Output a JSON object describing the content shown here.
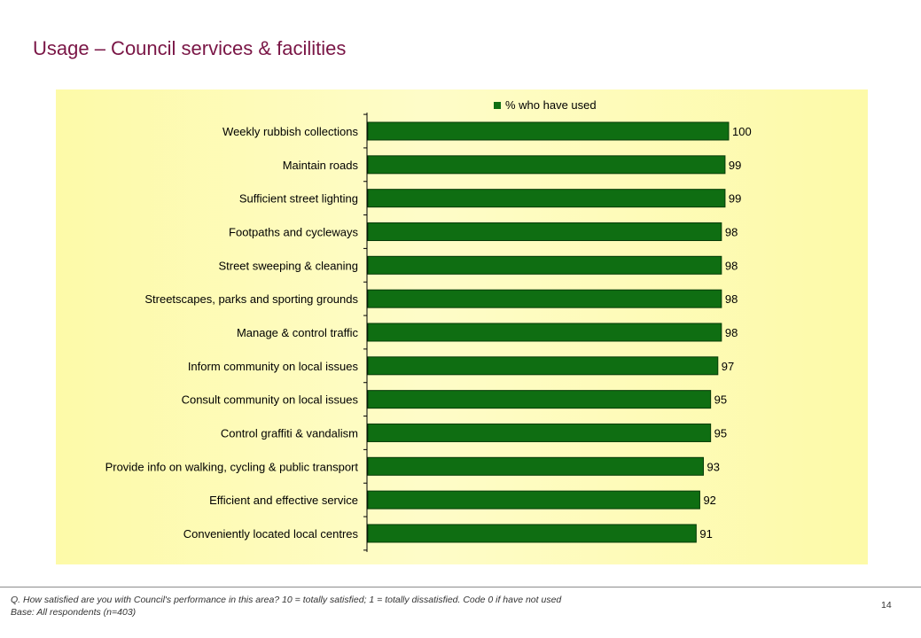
{
  "slide": {
    "title": "Usage – Council services & facilities",
    "footnote_question": "Q. How satisfied are you with Council's performance in this area? 10 = totally satisfied; 1 = totally dissatisfied.  Code 0 if have not used",
    "footnote_base": "Base: All respondents (n=403)",
    "page_number": "14"
  },
  "chart_data": {
    "type": "bar",
    "orientation": "horizontal",
    "title": "",
    "xlabel": "",
    "ylabel": "",
    "xlim": [
      0,
      100
    ],
    "grid": false,
    "legend": "top",
    "bar_color": "#0f6e12",
    "bar_edge_color": "#063b08",
    "background_color": "#fdfaa8",
    "series": [
      {
        "name": "% who have used",
        "values": [
          100,
          99,
          99,
          98,
          98,
          98,
          98,
          97,
          95,
          95,
          93,
          92,
          91
        ]
      }
    ],
    "categories": [
      "Weekly rubbish collections",
      "Maintain roads",
      "Sufficient street lighting",
      "Footpaths and cycleways",
      "Street sweeping & cleaning",
      "Streetscapes, parks and sporting grounds",
      "Manage & control traffic",
      "Inform community on local issues",
      "Consult  community on local issues",
      "Control graffiti & vandalism",
      "Provide info on walking, cycling & public transport",
      "Efficient and effective service",
      "Conveniently located local centres"
    ]
  }
}
